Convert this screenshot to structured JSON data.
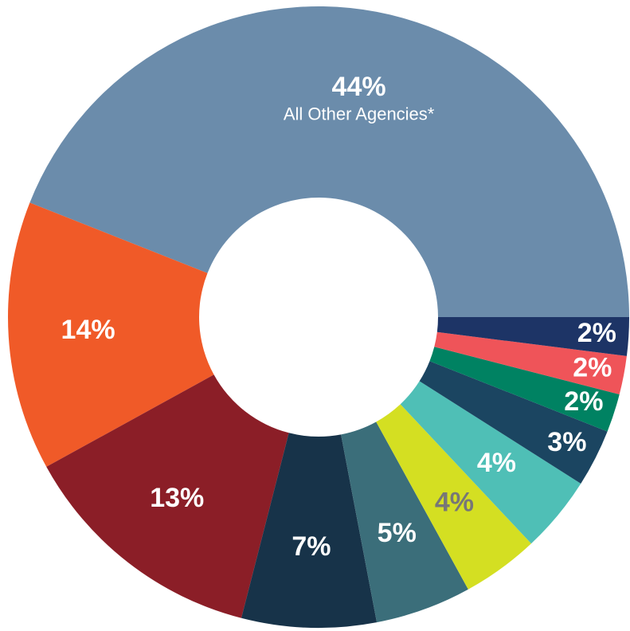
{
  "chart_data": {
    "type": "donut",
    "categories": [
      "All Other Agencies*",
      null,
      null,
      null,
      null,
      null,
      null,
      null,
      null,
      null,
      null
    ],
    "values": [
      44,
      14,
      13,
      7,
      5,
      4,
      4,
      3,
      2,
      2,
      2
    ],
    "value_labels": [
      "44%",
      "14%",
      "13%",
      "7%",
      "5%",
      "4%",
      "4%",
      "3%",
      "2%",
      "2%",
      "2%"
    ],
    "colors": [
      "#6b8cab",
      "#f05a28",
      "#8b1e27",
      "#173349",
      "#3b6e7a",
      "#d4df22",
      "#4fbfb6",
      "#1b4561",
      "#008262",
      "#ef5459",
      "#1d3466"
    ],
    "label_colors": [
      "#ffffff",
      "#ffffff",
      "#ffffff",
      "#ffffff",
      "#ffffff",
      "#777777",
      "#ffffff",
      "#ffffff",
      "#ffffff",
      "#ffffff",
      "#ffffff"
    ]
  }
}
